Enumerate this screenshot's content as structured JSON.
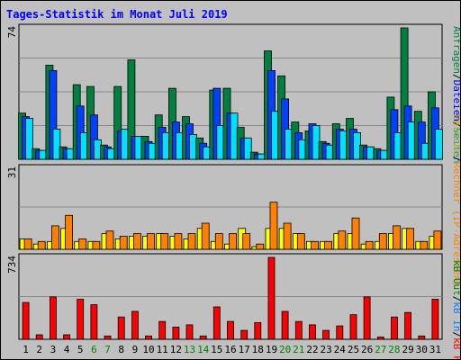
{
  "title": "Tages-Statistik im Monat Juli 2019",
  "colors": {
    "title": "#0000ff",
    "background": "#c0c0c0",
    "panel": "#c0c0c0",
    "hits": "#008040",
    "files": "#0040ff",
    "pages": "#00e0ff",
    "visits": "#ffff00",
    "sites": "#ff8000",
    "kbytes": "#ff0000",
    "weekend_day": "#008000",
    "weekday": "#000000",
    "label_hits": "#008040",
    "label_files": "#0000ff",
    "label_pages": "#00a0c0",
    "label_visits": "#c0a000",
    "label_sites": "#ff8000",
    "label_kbin": "#0080ff",
    "label_kbout": "#008000",
    "label_kbf": "#ff0000"
  },
  "chart_data": [
    {
      "type": "bar",
      "panel": "top",
      "ytick": "74",
      "ylim": [
        0,
        74
      ],
      "legend": {
        "hits": "Anfragen",
        "sep": "/",
        "files": "Dateien",
        "pages": "Seiten"
      },
      "categories": [
        "1",
        "2",
        "3",
        "4",
        "5",
        "6",
        "7",
        "8",
        "9",
        "10",
        "11",
        "12",
        "13",
        "14",
        "15",
        "16",
        "17",
        "18",
        "19",
        "20",
        "21",
        "22",
        "23",
        "24",
        "25",
        "26",
        "27",
        "28",
        "29",
        "30",
        "31"
      ],
      "series": [
        {
          "name": "Anfragen",
          "values": [
            26,
            6,
            53,
            7,
            42,
            41,
            8,
            41,
            56,
            13,
            25,
            40,
            24,
            12,
            39,
            40,
            18,
            4,
            61,
            47,
            21,
            16,
            10,
            20,
            23,
            8,
            6,
            35,
            74,
            27,
            38
          ]
        },
        {
          "name": "Dateien",
          "values": [
            24,
            5,
            50,
            6,
            30,
            25,
            7,
            16,
            13,
            10,
            18,
            21,
            20,
            9,
            40,
            26,
            12,
            3,
            50,
            34,
            15,
            20,
            9,
            17,
            17,
            7,
            5,
            28,
            30,
            21,
            29
          ]
        },
        {
          "name": "Seiten",
          "values": [
            23,
            5,
            17,
            6,
            15,
            11,
            6,
            17,
            13,
            9,
            15,
            15,
            14,
            7,
            19,
            26,
            12,
            3,
            27,
            17,
            11,
            19,
            8,
            16,
            15,
            7,
            5,
            15,
            21,
            9,
            17
          ]
        }
      ]
    },
    {
      "type": "bar",
      "panel": "middle",
      "ytick": "31",
      "ylim": [
        0,
        31
      ],
      "legend": {
        "visits": "Besuche",
        "sep": "/",
        "sites": "Rechner (IP-Adressen)"
      },
      "categories": [
        "1",
        "2",
        "3",
        "4",
        "5",
        "6",
        "7",
        "8",
        "9",
        "10",
        "11",
        "12",
        "13",
        "14",
        "15",
        "16",
        "17",
        "18",
        "19",
        "20",
        "21",
        "22",
        "23",
        "24",
        "25",
        "26",
        "27",
        "28",
        "29",
        "30",
        "31"
      ],
      "series": [
        {
          "name": "Besuche",
          "values": [
            4,
            2,
            3,
            8,
            3,
            3,
            6,
            4,
            5,
            5,
            6,
            5,
            4,
            8,
            3,
            2,
            8,
            1,
            8,
            8,
            6,
            3,
            3,
            6,
            6,
            2,
            3,
            6,
            8,
            3,
            5
          ]
        },
        {
          "name": "Rechner (IP-Adressen)",
          "values": [
            4,
            3,
            9,
            13,
            4,
            3,
            7,
            5,
            6,
            6,
            6,
            6,
            6,
            10,
            6,
            6,
            6,
            2,
            18,
            10,
            6,
            3,
            3,
            7,
            12,
            3,
            6,
            9,
            8,
            3,
            7
          ]
        }
      ]
    },
    {
      "type": "bar",
      "panel": "bottom",
      "ytick": "734",
      "ylim": [
        0,
        734
      ],
      "legend": {
        "kbf": "kB F",
        "sep1": "/",
        "kbin": "kB In",
        "sep2": "/",
        "kbout": "kB Out"
      },
      "categories": [
        "1",
        "2",
        "3",
        "4",
        "5",
        "6",
        "7",
        "8",
        "9",
        "10",
        "11",
        "12",
        "13",
        "14",
        "15",
        "16",
        "17",
        "18",
        "19",
        "20",
        "21",
        "22",
        "23",
        "24",
        "25",
        "26",
        "27",
        "28",
        "29",
        "30",
        "31"
      ],
      "series": [
        {
          "name": "kB F",
          "values": [
            330,
            40,
            380,
            40,
            360,
            310,
            30,
            200,
            250,
            30,
            160,
            110,
            130,
            30,
            290,
            160,
            80,
            150,
            734,
            250,
            160,
            130,
            80,
            120,
            220,
            380,
            20,
            200,
            240,
            30,
            360
          ]
        }
      ]
    }
  ]
}
